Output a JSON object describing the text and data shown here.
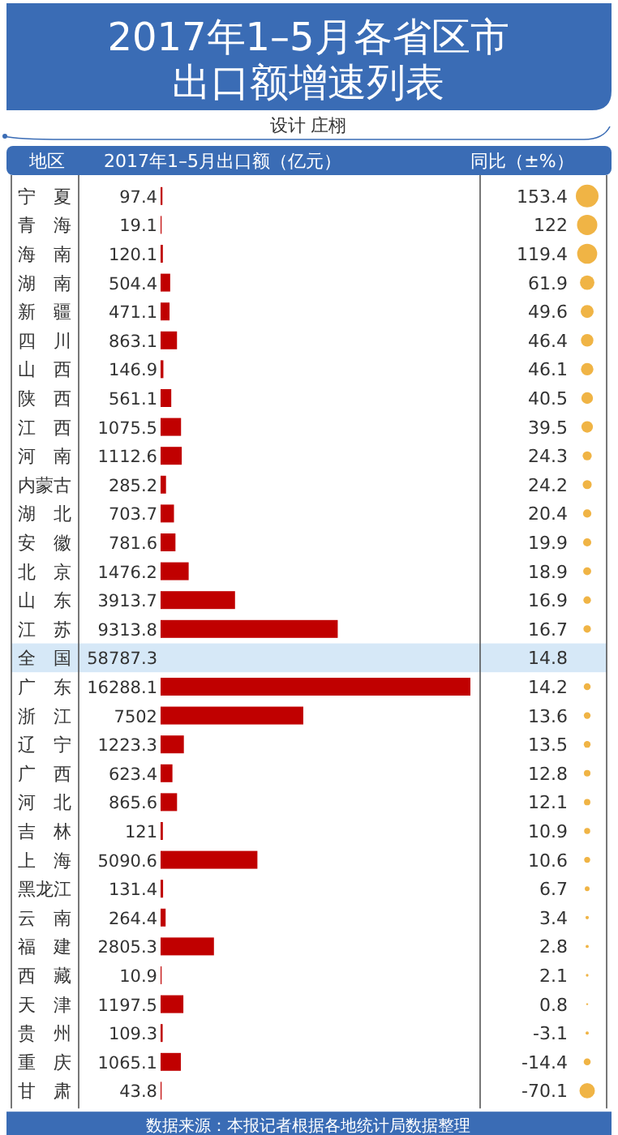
{
  "chart_data": [
    {
      "type": "bar",
      "orientation": "horizontal",
      "title": "2017年1–5月各省区市出口额增速列表",
      "subtitle": "设计 庄栩",
      "ylabel": "地区",
      "xlabel": "2017年1–5月出口额（亿元）",
      "color": "#c00000",
      "categories": [
        "宁夏",
        "青海",
        "海南",
        "湖南",
        "新疆",
        "四川",
        "山西",
        "陕西",
        "江西",
        "河南",
        "内蒙古",
        "湖北",
        "安徽",
        "北京",
        "山东",
        "江苏",
        "全国",
        "广东",
        "浙江",
        "辽宁",
        "广西",
        "河北",
        "吉林",
        "上海",
        "黑龙江",
        "云南",
        "福建",
        "西藏",
        "天津",
        "贵州",
        "重庆",
        "甘肃"
      ],
      "values": [
        97.4,
        19.1,
        120.1,
        504.4,
        471.1,
        863.1,
        146.9,
        561.1,
        1075.5,
        1112.6,
        285.2,
        703.7,
        781.6,
        1476.2,
        3913.7,
        9313.8,
        null,
        16288.1,
        7502,
        1223.3,
        623.4,
        865.6,
        121,
        5090.6,
        131.4,
        264.4,
        2805.3,
        10.9,
        1197.5,
        109.3,
        1065.1,
        43.8
      ],
      "value_labels": [
        "97.4",
        "19.1",
        "120.1",
        "504.4",
        "471.1",
        "863.1",
        "146.9",
        "561.1",
        "1075.5",
        "1112.6",
        "285.2",
        "703.7",
        "781.6",
        "1476.2",
        "3913.7",
        "9313.8",
        "58787.3",
        "16288.1",
        "7502",
        "1223.3",
        "623.4",
        "865.6",
        "121",
        "5090.6",
        "131.4",
        "264.4",
        "2805.3",
        "10.9",
        "1197.5",
        "109.3",
        "1065.1",
        "43.8"
      ],
      "annotations": [
        "数据来源：本报记者根据各地统计局数据整理"
      ]
    },
    {
      "type": "other",
      "title": "同比（±%）",
      "data_labels": true,
      "categories": [
        null,
        null,
        null,
        null,
        null,
        null,
        null,
        null,
        null,
        null,
        null,
        null,
        null,
        null,
        null,
        null,
        null,
        null,
        null,
        null,
        null,
        null,
        null,
        null,
        null,
        null,
        null,
        null,
        null,
        null,
        null,
        null
      ],
      "values": [
        153.4,
        122,
        119.4,
        61.9,
        49.6,
        46.4,
        46.1,
        40.5,
        39.5,
        24.3,
        24.2,
        20.4,
        19.9,
        18.9,
        16.9,
        16.7,
        14.8,
        14.2,
        13.6,
        13.5,
        12.8,
        12.1,
        10.9,
        10.6,
        6.7,
        3.4,
        2.8,
        2.1,
        0.8,
        -3.1,
        -14.4,
        -70.1
      ],
      "colors": [
        "#f0b445",
        "#f0b445",
        "#f0b445",
        "#f0b445",
        "#f0b445",
        "#f0b445",
        "#f0b445",
        "#f0b445",
        "#f0b445",
        "#f0b445",
        "#f0b445",
        "#f0b445",
        "#f0b445",
        "#f0b445",
        "#f0b445",
        "#f0b445",
        null,
        "#f0b445",
        "#f0b445",
        "#f0b445",
        "#f0b445",
        "#f0b445",
        "#f0b445",
        "#f0b445",
        "#f0b445",
        "#f0b445",
        "#f0b445",
        "#f0b445",
        "#f0b445",
        "#f0b445",
        "#f0b445",
        "#f0b445"
      ]
    }
  ]
}
